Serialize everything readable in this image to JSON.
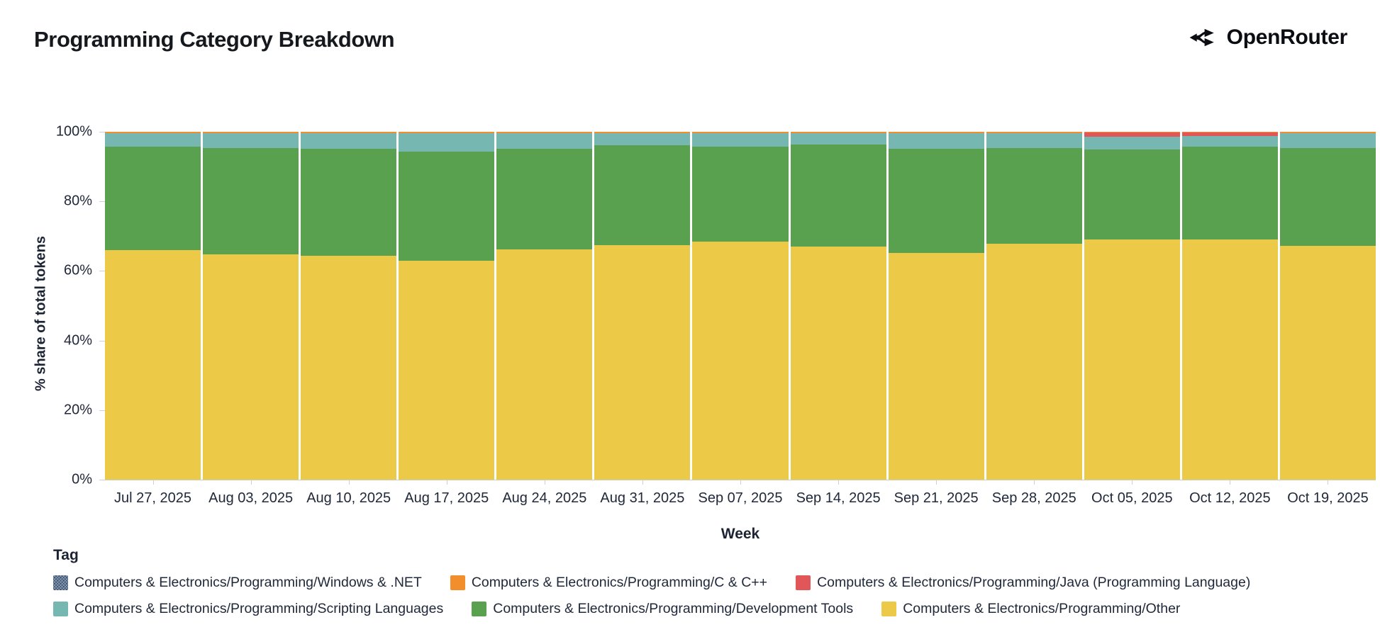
{
  "header": {
    "title": "Programming Category Breakdown",
    "logo_text": "OpenRouter"
  },
  "chart_data": {
    "type": "bar",
    "stacked": true,
    "normalized_to_100pct": true,
    "title": "Programming Category Breakdown",
    "xlabel": "Week",
    "ylabel": "% share of total tokens",
    "ylim": [
      0,
      100
    ],
    "ytick_labels": [
      "100%",
      "80%",
      "60%",
      "40%",
      "20%",
      "0%"
    ],
    "grid": false,
    "categories": [
      "Jul 27, 2025",
      "Aug 03, 2025",
      "Aug 10, 2025",
      "Aug 17, 2025",
      "Aug 24, 2025",
      "Aug 31, 2025",
      "Sep 07, 2025",
      "Sep 14, 2025",
      "Sep 21, 2025",
      "Sep 28, 2025",
      "Oct 05, 2025",
      "Oct 12, 2025",
      "Oct 19, 2025"
    ],
    "series_note": "series listed bottom-to-top of the stack; values are percent of total tokens per week",
    "series": [
      {
        "name": "Computers & Electronics/Programming/Other",
        "color": "#edc948",
        "values": [
          66.0,
          64.8,
          64.4,
          62.9,
          66.2,
          67.4,
          68.5,
          66.9,
          65.2,
          67.8,
          69.0,
          69.1,
          67.3
        ]
      },
      {
        "name": "Computers & Electronics/Programming/Development Tools",
        "color": "#59a14f",
        "values": [
          29.7,
          30.6,
          30.7,
          31.4,
          28.9,
          28.8,
          27.3,
          29.4,
          29.9,
          27.6,
          26.0,
          26.7,
          28.1
        ]
      },
      {
        "name": "Computers & Electronics/Programming/Scripting Languages",
        "color": "#76b7b2",
        "values": [
          3.9,
          4.2,
          4.5,
          5.2,
          4.5,
          3.4,
          3.8,
          3.3,
          4.5,
          4.1,
          3.6,
          3.0,
          4.2
        ]
      },
      {
        "name": "Computers & Electronics/Programming/Java (Programming Language)",
        "color": "#e15759",
        "values": [
          0,
          0,
          0,
          0,
          0,
          0,
          0,
          0,
          0,
          0,
          1.2,
          0.9,
          0
        ]
      },
      {
        "name": "Computers & Electronics/Programming/C & C++",
        "color": "#f28e2b",
        "values": [
          0.4,
          0.4,
          0.4,
          0.5,
          0.4,
          0.4,
          0.4,
          0.4,
          0.4,
          0.5,
          0.2,
          0.3,
          0.4
        ]
      },
      {
        "name": "Computers & Electronics/Programming/Windows & .NET",
        "color": "#41516a",
        "pattern": true,
        "values": [
          0,
          0,
          0,
          0,
          0,
          0,
          0,
          0,
          0,
          0,
          0,
          0,
          0
        ]
      }
    ],
    "legend": {
      "title": "Tag",
      "position": "bottom",
      "item_series_indexes": [
        5,
        4,
        3,
        2,
        1,
        0
      ]
    }
  }
}
